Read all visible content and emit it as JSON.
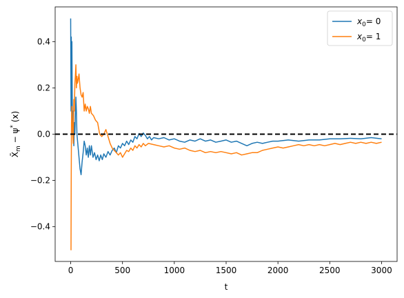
{
  "chart_data": {
    "type": "line",
    "xlabel": "t",
    "ylabel": "X̄",
    "ylabel_sub": "m",
    "ylabel_rest": " − ψ",
    "ylabel_sup": "*",
    "ylabel_end": " (x)",
    "xlim": [
      -150,
      3150
    ],
    "ylim": [
      -0.55,
      0.55
    ],
    "xticks": [
      0,
      500,
      1000,
      1500,
      2000,
      2500,
      3000
    ],
    "xtick_labels": [
      "0",
      "500",
      "1000",
      "1500",
      "2000",
      "2500",
      "3000"
    ],
    "yticks": [
      -0.4,
      -0.2,
      0.0,
      0.2,
      0.4
    ],
    "ytick_labels": [
      "−0.4",
      "−0.2",
      "0.0",
      "0.2",
      "0.4"
    ],
    "hline": {
      "y": 0.0,
      "style": "dashed",
      "color": "#000000"
    },
    "legend": {
      "placement": "top-right"
    },
    "series": [
      {
        "name": "x",
        "name_sub": "0",
        "name_rest": "= 0",
        "color": "#1f77b4",
        "points": [
          [
            0,
            0.5
          ],
          [
            3,
            0.1
          ],
          [
            6,
            0.42
          ],
          [
            9,
            0.05
          ],
          [
            12,
            0.4
          ],
          [
            15,
            0.15
          ],
          [
            18,
            0.0
          ],
          [
            22,
            0.1
          ],
          [
            26,
            0.05
          ],
          [
            30,
            -0.05
          ],
          [
            35,
            0.05
          ],
          [
            40,
            0.0
          ],
          [
            45,
            0.08
          ],
          [
            50,
            0.16
          ],
          [
            55,
            0.1
          ],
          [
            60,
            0.0
          ],
          [
            70,
            -0.05
          ],
          [
            80,
            -0.1
          ],
          [
            90,
            -0.15
          ],
          [
            100,
            -0.175
          ],
          [
            110,
            -0.12
          ],
          [
            120,
            -0.08
          ],
          [
            130,
            -0.03
          ],
          [
            140,
            -0.05
          ],
          [
            150,
            -0.09
          ],
          [
            160,
            -0.06
          ],
          [
            170,
            -0.1
          ],
          [
            180,
            -0.05
          ],
          [
            190,
            -0.09
          ],
          [
            200,
            -0.05
          ],
          [
            215,
            -0.1
          ],
          [
            230,
            -0.08
          ],
          [
            245,
            -0.11
          ],
          [
            260,
            -0.09
          ],
          [
            275,
            -0.115
          ],
          [
            290,
            -0.09
          ],
          [
            305,
            -0.11
          ],
          [
            320,
            -0.085
          ],
          [
            340,
            -0.1
          ],
          [
            360,
            -0.075
          ],
          [
            380,
            -0.09
          ],
          [
            400,
            -0.07
          ],
          [
            420,
            -0.06
          ],
          [
            440,
            -0.08
          ],
          [
            460,
            -0.05
          ],
          [
            480,
            -0.06
          ],
          [
            500,
            -0.04
          ],
          [
            520,
            -0.05
          ],
          [
            540,
            -0.03
          ],
          [
            560,
            -0.045
          ],
          [
            580,
            -0.025
          ],
          [
            600,
            -0.035
          ],
          [
            620,
            -0.01
          ],
          [
            640,
            -0.02
          ],
          [
            660,
            0.003
          ],
          [
            680,
            -0.01
          ],
          [
            700,
            0.005
          ],
          [
            720,
            -0.005
          ],
          [
            740,
            -0.02
          ],
          [
            760,
            -0.01
          ],
          [
            780,
            -0.025
          ],
          [
            800,
            -0.015
          ],
          [
            850,
            -0.02
          ],
          [
            900,
            -0.015
          ],
          [
            950,
            -0.025
          ],
          [
            1000,
            -0.02
          ],
          [
            1050,
            -0.03
          ],
          [
            1100,
            -0.035
          ],
          [
            1150,
            -0.025
          ],
          [
            1200,
            -0.03
          ],
          [
            1250,
            -0.02
          ],
          [
            1300,
            -0.03
          ],
          [
            1350,
            -0.025
          ],
          [
            1400,
            -0.035
          ],
          [
            1450,
            -0.03
          ],
          [
            1500,
            -0.025
          ],
          [
            1550,
            -0.035
          ],
          [
            1600,
            -0.03
          ],
          [
            1650,
            -0.04
          ],
          [
            1700,
            -0.05
          ],
          [
            1750,
            -0.04
          ],
          [
            1800,
            -0.035
          ],
          [
            1850,
            -0.04
          ],
          [
            1900,
            -0.035
          ],
          [
            1950,
            -0.03
          ],
          [
            2000,
            -0.03
          ],
          [
            2100,
            -0.025
          ],
          [
            2200,
            -0.03
          ],
          [
            2300,
            -0.025
          ],
          [
            2400,
            -0.025
          ],
          [
            2500,
            -0.02
          ],
          [
            2600,
            -0.02
          ],
          [
            2700,
            -0.018
          ],
          [
            2800,
            -0.02
          ],
          [
            2900,
            -0.015
          ],
          [
            3000,
            -0.02
          ]
        ]
      },
      {
        "name": "x",
        "name_sub": "0",
        "name_rest": "= 1",
        "color": "#ff7f0e",
        "points": [
          [
            0,
            -0.5
          ],
          [
            3,
            -0.5
          ],
          [
            5,
            -0.2
          ],
          [
            8,
            0.05
          ],
          [
            12,
            0.12
          ],
          [
            16,
            0.05
          ],
          [
            20,
            0.0
          ],
          [
            25,
            -0.04
          ],
          [
            30,
            0.15
          ],
          [
            35,
            0.1
          ],
          [
            40,
            0.22
          ],
          [
            45,
            0.25
          ],
          [
            50,
            0.3
          ],
          [
            55,
            0.2
          ],
          [
            60,
            0.25
          ],
          [
            65,
            0.22
          ],
          [
            70,
            0.23
          ],
          [
            80,
            0.26
          ],
          [
            90,
            0.2
          ],
          [
            100,
            0.17
          ],
          [
            110,
            0.16
          ],
          [
            120,
            0.18
          ],
          [
            130,
            0.1
          ],
          [
            140,
            0.13
          ],
          [
            150,
            0.1
          ],
          [
            160,
            0.12
          ],
          [
            170,
            0.11
          ],
          [
            180,
            0.09
          ],
          [
            190,
            0.12
          ],
          [
            200,
            0.09
          ],
          [
            220,
            0.08
          ],
          [
            240,
            0.06
          ],
          [
            260,
            0.05
          ],
          [
            280,
            0.0
          ],
          [
            300,
            -0.01
          ],
          [
            320,
            0.0
          ],
          [
            340,
            0.02
          ],
          [
            360,
            -0.01
          ],
          [
            380,
            -0.04
          ],
          [
            400,
            -0.06
          ],
          [
            420,
            -0.07
          ],
          [
            440,
            -0.08
          ],
          [
            460,
            -0.09
          ],
          [
            480,
            -0.08
          ],
          [
            500,
            -0.1
          ],
          [
            520,
            -0.085
          ],
          [
            540,
            -0.07
          ],
          [
            560,
            -0.075
          ],
          [
            580,
            -0.06
          ],
          [
            600,
            -0.07
          ],
          [
            620,
            -0.05
          ],
          [
            640,
            -0.06
          ],
          [
            660,
            -0.045
          ],
          [
            680,
            -0.055
          ],
          [
            700,
            -0.04
          ],
          [
            720,
            -0.05
          ],
          [
            750,
            -0.04
          ],
          [
            800,
            -0.045
          ],
          [
            850,
            -0.05
          ],
          [
            900,
            -0.055
          ],
          [
            950,
            -0.05
          ],
          [
            1000,
            -0.06
          ],
          [
            1050,
            -0.065
          ],
          [
            1100,
            -0.06
          ],
          [
            1150,
            -0.07
          ],
          [
            1200,
            -0.075
          ],
          [
            1250,
            -0.07
          ],
          [
            1300,
            -0.08
          ],
          [
            1350,
            -0.075
          ],
          [
            1400,
            -0.08
          ],
          [
            1450,
            -0.075
          ],
          [
            1500,
            -0.08
          ],
          [
            1550,
            -0.085
          ],
          [
            1600,
            -0.08
          ],
          [
            1650,
            -0.09
          ],
          [
            1700,
            -0.085
          ],
          [
            1750,
            -0.08
          ],
          [
            1800,
            -0.08
          ],
          [
            1850,
            -0.07
          ],
          [
            1900,
            -0.065
          ],
          [
            1950,
            -0.06
          ],
          [
            2000,
            -0.055
          ],
          [
            2050,
            -0.06
          ],
          [
            2100,
            -0.055
          ],
          [
            2150,
            -0.05
          ],
          [
            2200,
            -0.045
          ],
          [
            2250,
            -0.05
          ],
          [
            2300,
            -0.045
          ],
          [
            2350,
            -0.05
          ],
          [
            2400,
            -0.045
          ],
          [
            2450,
            -0.05
          ],
          [
            2500,
            -0.045
          ],
          [
            2550,
            -0.04
          ],
          [
            2600,
            -0.045
          ],
          [
            2650,
            -0.04
          ],
          [
            2700,
            -0.035
          ],
          [
            2750,
            -0.04
          ],
          [
            2800,
            -0.035
          ],
          [
            2850,
            -0.04
          ],
          [
            2900,
            -0.035
          ],
          [
            2950,
            -0.04
          ],
          [
            3000,
            -0.035
          ]
        ]
      }
    ]
  }
}
